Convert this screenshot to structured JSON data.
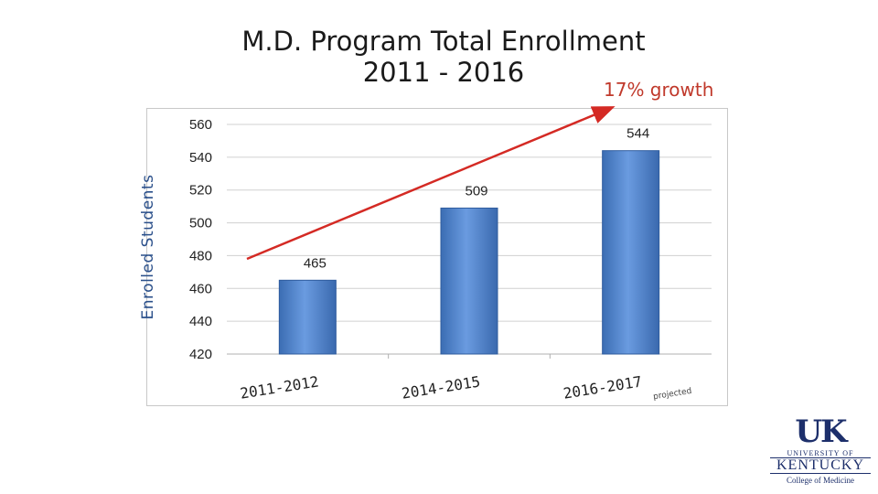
{
  "chart_data": {
    "type": "bar",
    "title_line1": "M.D. Program Total Enrollment",
    "title_line2": "2011 - 2016",
    "ylabel": "Enrolled Students",
    "xlabel": "",
    "categories": [
      "2011-2012",
      "2014-2015",
      "2016-2017"
    ],
    "values": [
      465,
      509,
      544
    ],
    "data_labels": [
      "465",
      "509",
      "544"
    ],
    "ylim": [
      420,
      560
    ],
    "yticks": [
      420,
      440,
      460,
      480,
      500,
      520,
      540,
      560
    ],
    "grid": true,
    "bar_color": "#4a7fc8",
    "annotation": "17% growth",
    "annotation_color": "#c0392b",
    "category_note": "projected"
  },
  "logo": {
    "mark": "UK",
    "university": "UNIVERSITY OF",
    "name": "KENTUCKY",
    "college": "College of Medicine",
    "color": "#1d2f6b"
  }
}
